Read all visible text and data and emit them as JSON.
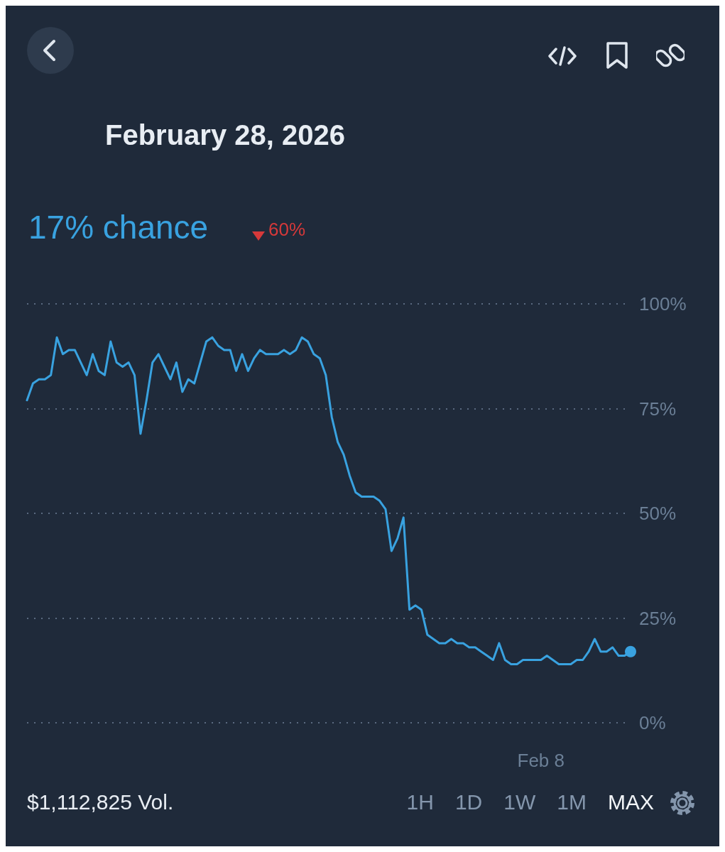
{
  "chart_data": {
    "type": "line",
    "title": "February 28, 2026",
    "annotations": [
      "17% chance",
      "60%",
      "$1,112,825 Vol.",
      "1H",
      "1D",
      "1W",
      "1M",
      "MAX"
    ],
    "categories": [
      null,
      null,
      null,
      null,
      null,
      null,
      null,
      null,
      null,
      null,
      null,
      null,
      null,
      null,
      null,
      null,
      null,
      null,
      null,
      null,
      null,
      null,
      null,
      null,
      null,
      null,
      null,
      null,
      null,
      null,
      null,
      null,
      null,
      null,
      null,
      null,
      null,
      null,
      null,
      null,
      null,
      null,
      null,
      null,
      null,
      null,
      null,
      null,
      null,
      null,
      null,
      null,
      null,
      null,
      null,
      null,
      null,
      null,
      null,
      null,
      null,
      null,
      null,
      null,
      null,
      null,
      null,
      null,
      null,
      null,
      null,
      null,
      null,
      null,
      null,
      null,
      null,
      null,
      null,
      null,
      null,
      null,
      null,
      null,
      null,
      null,
      "Feb 8",
      null,
      null,
      null,
      null,
      null,
      null,
      null,
      null,
      null,
      null,
      null,
      null,
      null,
      null,
      null
    ],
    "series": [
      {
        "color": "#39a2e0",
        "values": [
          77,
          81,
          82,
          82,
          83,
          92,
          88,
          89,
          89,
          86,
          83,
          88,
          84,
          83,
          91,
          86,
          85,
          86,
          83,
          69,
          77,
          86,
          88,
          85,
          82,
          86,
          79,
          82,
          81,
          86,
          91,
          92,
          90,
          89,
          89,
          84,
          88,
          84,
          87,
          89,
          88,
          88,
          88,
          89,
          88,
          89,
          92,
          91,
          88,
          87,
          83,
          73,
          67,
          64,
          59,
          55,
          54,
          54,
          54,
          53,
          51,
          41,
          44,
          49,
          27,
          28,
          27,
          21,
          20,
          19,
          19,
          20,
          19,
          19,
          18,
          18,
          17,
          16,
          15,
          19,
          15,
          14,
          14,
          15,
          15,
          15,
          15,
          16,
          15,
          14,
          14,
          14,
          15,
          15,
          17,
          20,
          17,
          17,
          18,
          16,
          16,
          17
        ]
      }
    ],
    "ylim": [
      0,
      100
    ],
    "yticks": [
      {
        "value": 0,
        "label": "0%"
      },
      {
        "value": 25,
        "label": "25%"
      },
      {
        "value": 50,
        "label": "50%"
      },
      {
        "value": 75,
        "label": "75%"
      },
      {
        "value": 100,
        "label": "100%"
      }
    ],
    "grid": "y",
    "line_style": "solid"
  }
}
